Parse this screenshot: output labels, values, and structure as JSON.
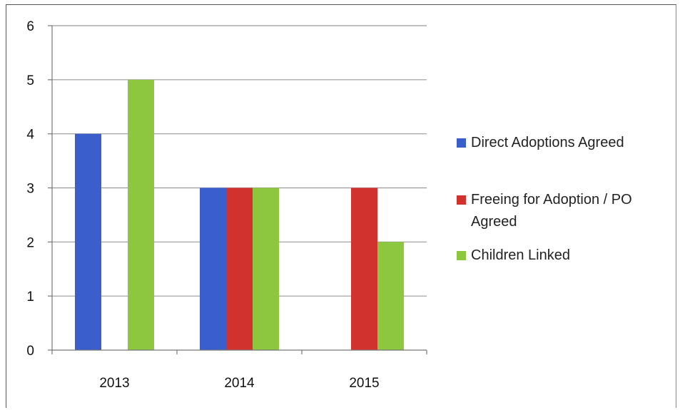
{
  "chart_data": {
    "type": "bar",
    "title": "",
    "xlabel": "",
    "ylabel": "",
    "categories": [
      "2013",
      "2014",
      "2015"
    ],
    "series": [
      {
        "name": "Direct Adoptions Agreed",
        "color": "#3a5fcd",
        "values": [
          4,
          3,
          0
        ]
      },
      {
        "name": "Freeing for Adoption / PO Agreed",
        "color": "#d2322d",
        "values": [
          0,
          3,
          3
        ]
      },
      {
        "name": "Children Linked",
        "color": "#8dc63f",
        "values": [
          5,
          3,
          2
        ]
      }
    ],
    "ylim": [
      0,
      6
    ],
    "yticks": [
      "0",
      "1",
      "2",
      "3",
      "4",
      "5",
      "6"
    ],
    "grid": true,
    "legend_position": "right"
  }
}
